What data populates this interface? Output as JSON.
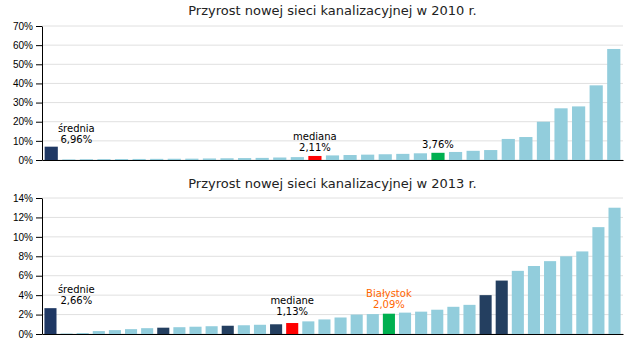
{
  "chart_data": [
    {
      "type": "bar",
      "title": "Przyrost nowej sieci kanalizacyjnej w 2010 r.",
      "categories": [
        null,
        null,
        null,
        null,
        null,
        null,
        null,
        null,
        null,
        null,
        null,
        null,
        null,
        null,
        null,
        null,
        null,
        null,
        null,
        null,
        null,
        null,
        null,
        null,
        null,
        null,
        null,
        null,
        null,
        null,
        null,
        null,
        null
      ],
      "values": [
        0.0696,
        0.003,
        0.004,
        0.0045,
        0.005,
        0.0055,
        0.006,
        0.0065,
        0.007,
        0.008,
        0.009,
        0.01,
        0.011,
        0.013,
        0.015,
        0.0211,
        0.024,
        0.026,
        0.028,
        0.03,
        0.032,
        0.035,
        0.0376,
        0.042,
        0.048,
        0.052,
        0.11,
        0.12,
        0.2,
        0.27,
        0.28,
        0.39,
        0.58
      ],
      "colors": [
        "#1F3864",
        "#92CDDC",
        "#92CDDC",
        "#92CDDC",
        "#92CDDC",
        "#92CDDC",
        "#92CDDC",
        "#92CDDC",
        "#92CDDC",
        "#92CDDC",
        "#92CDDC",
        "#92CDDC",
        "#92CDDC",
        "#92CDDC",
        "#92CDDC",
        "#FF0000",
        "#92CDDC",
        "#92CDDC",
        "#92CDDC",
        "#92CDDC",
        "#92CDDC",
        "#92CDDC",
        "#00B050",
        "#92CDDC",
        "#92CDDC",
        "#92CDDC",
        "#92CDDC",
        "#92CDDC",
        "#92CDDC",
        "#92CDDC",
        "#92CDDC",
        "#92CDDC",
        "#92CDDC"
      ],
      "ylim": [
        0,
        0.7
      ],
      "yticks": [
        {
          "value": 0.0,
          "label": "0%"
        },
        {
          "value": 0.1,
          "label": "10%"
        },
        {
          "value": 0.2,
          "label": "20%"
        },
        {
          "value": 0.3,
          "label": "30%"
        },
        {
          "value": 0.4,
          "label": "40%"
        },
        {
          "value": 0.5,
          "label": "50%"
        },
        {
          "value": 0.6,
          "label": "60%"
        },
        {
          "value": 0.7,
          "label": "70%"
        }
      ],
      "grid": true,
      "tick_labels": "y",
      "annotations": [
        {
          "text": "średnia\n6,96%",
          "index": 0,
          "color": "#000000"
        },
        {
          "text": "mediana\n2,11%",
          "index": 15,
          "color": "#000000"
        },
        {
          "text": "3,76%",
          "index": 22,
          "color": "#000000"
        }
      ]
    },
    {
      "type": "bar",
      "title": "Przyrost nowej sieci kanalizacyjnej w 2013 r.",
      "categories": [
        null,
        null,
        null,
        null,
        null,
        null,
        null,
        null,
        null,
        null,
        null,
        null,
        null,
        null,
        null,
        null,
        null,
        null,
        null,
        null,
        null,
        null,
        null,
        null,
        null,
        null,
        null,
        null,
        null,
        null,
        null,
        null,
        null,
        null,
        null,
        null
      ],
      "values": [
        0.0266,
        0.0005,
        0.001,
        0.003,
        0.004,
        0.005,
        0.006,
        0.0065,
        0.007,
        0.0075,
        0.008,
        0.0085,
        0.009,
        0.0095,
        0.01,
        0.0113,
        0.013,
        0.015,
        0.017,
        0.02,
        0.0205,
        0.0209,
        0.022,
        0.023,
        0.025,
        0.028,
        0.03,
        0.04,
        0.055,
        0.065,
        0.07,
        0.075,
        0.08,
        0.085,
        0.11,
        0.13
      ],
      "colors": [
        "#1F3864",
        "#92CDDC",
        "#92CDDC",
        "#92CDDC",
        "#92CDDC",
        "#92CDDC",
        "#92CDDC",
        "#243F60",
        "#92CDDC",
        "#92CDDC",
        "#92CDDC",
        "#243F60",
        "#92CDDC",
        "#92CDDC",
        "#243F60",
        "#FF0000",
        "#92CDDC",
        "#92CDDC",
        "#92CDDC",
        "#92CDDC",
        "#92CDDC",
        "#00B050",
        "#92CDDC",
        "#92CDDC",
        "#92CDDC",
        "#92CDDC",
        "#92CDDC",
        "#243F60",
        "#243F60",
        "#92CDDC",
        "#92CDDC",
        "#92CDDC",
        "#92CDDC",
        "#92CDDC",
        "#92CDDC",
        "#92CDDC"
      ],
      "ylim": [
        0,
        0.14
      ],
      "yticks": [
        {
          "value": 0.0,
          "label": "0%"
        },
        {
          "value": 0.02,
          "label": "2%"
        },
        {
          "value": 0.04,
          "label": "4%"
        },
        {
          "value": 0.06,
          "label": "6%"
        },
        {
          "value": 0.08,
          "label": "8%"
        },
        {
          "value": 0.1,
          "label": "10%"
        },
        {
          "value": 0.12,
          "label": "12%"
        },
        {
          "value": 0.14,
          "label": "14%"
        }
      ],
      "grid": true,
      "tick_labels": "y",
      "annotations": [
        {
          "text": "średnie\n2,66%",
          "index": 0,
          "color": "#000000"
        },
        {
          "text": "mediane\n1,13%",
          "index": 15,
          "color": "#000000"
        },
        {
          "text": "Białystok\n2,09%",
          "index": 21,
          "color": "#FF6600"
        }
      ]
    }
  ]
}
